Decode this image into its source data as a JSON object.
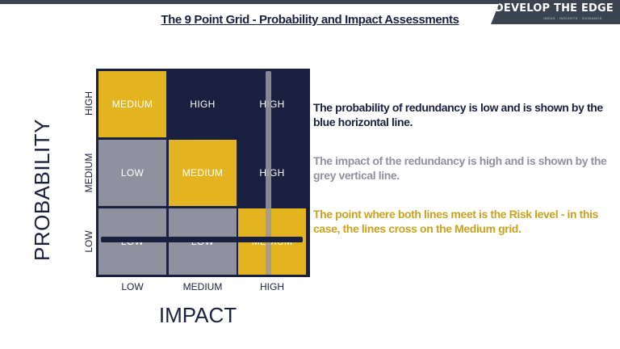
{
  "brand": {
    "name": "DEVELOP THE EDGE",
    "tagline": "IDEAS · INSIGHTS · GUIDANCE"
  },
  "title": "The 9 Point Grid - Probability and Impact Assessments",
  "axes": {
    "y_label": "PROBABILITY",
    "x_label": "IMPACT",
    "rows": [
      "HIGH",
      "MEDIUM",
      "LOW"
    ],
    "cols": [
      "LOW",
      "MEDIUM",
      "HIGH"
    ]
  },
  "grid": {
    "cells": [
      [
        {
          "label": "MEDIUM",
          "color": "#e3b420"
        },
        {
          "label": "HIGH",
          "color": "#1a2040"
        },
        {
          "label": "HIGH",
          "color": "#1a2040"
        }
      ],
      [
        {
          "label": "LOW",
          "color": "#8f919e"
        },
        {
          "label": "MEDIUM",
          "color": "#e3b420"
        },
        {
          "label": "HIGH",
          "color": "#1a2040"
        }
      ],
      [
        {
          "label": "LOW",
          "color": "#8f919e"
        },
        {
          "label": "LOW",
          "color": "#8f919e"
        },
        {
          "label": "MEDIUM",
          "color": "#e3b420"
        }
      ]
    ]
  },
  "descriptions": {
    "probability": "The probability of redundancy is low and is shown by the blue horizontal line.",
    "impact": "The impact of the redundancy is high and is shown by the grey vertical line.",
    "risk": "The point where both lines meet is the Risk level - in this case, the lines cross on the Medium grid."
  },
  "colors": {
    "navy": "#1a2040",
    "gold": "#e3b420",
    "grey": "#8f919e"
  }
}
